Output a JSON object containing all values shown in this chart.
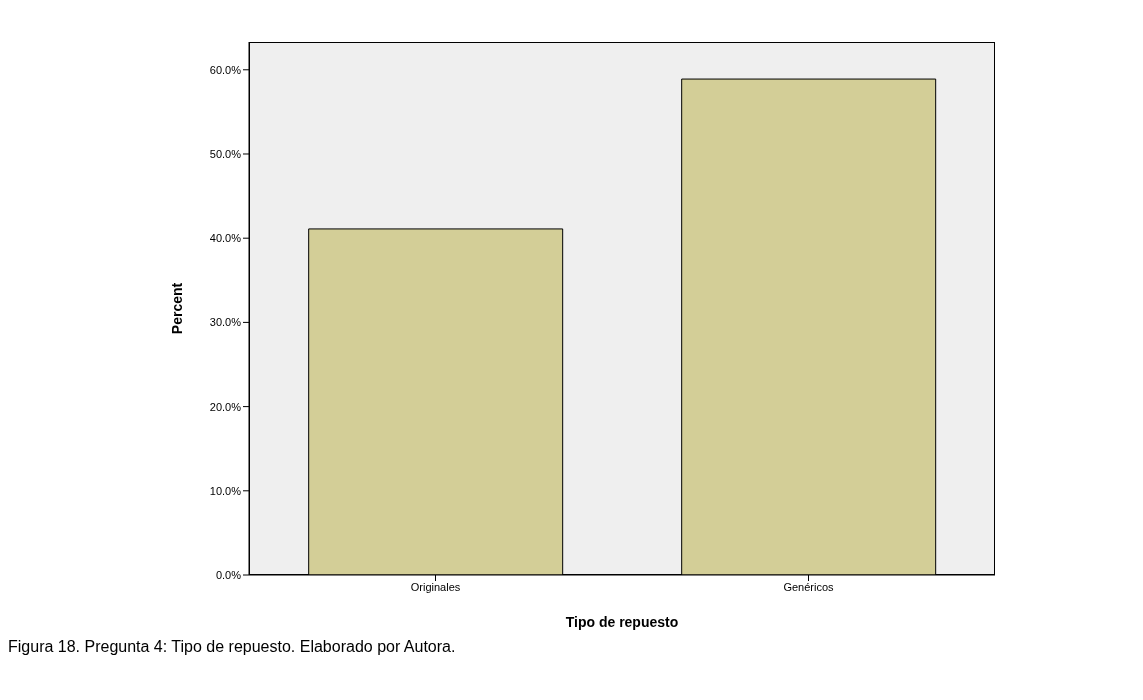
{
  "chart_data": {
    "type": "bar",
    "xlabel": "Tipo de repuesto",
    "ylabel": "Percent",
    "categories": [
      "Originales",
      "Genéricos"
    ],
    "values": [
      41.1,
      58.9
    ],
    "color": "#d3ce97",
    "ylim": [
      0,
      63.3
    ],
    "yticks": [
      {
        "value": 0,
        "label": "0.0%"
      },
      {
        "value": 10,
        "label": "10.0%"
      },
      {
        "value": 20,
        "label": "20.0%"
      },
      {
        "value": 30,
        "label": "30.0%"
      },
      {
        "value": 40,
        "label": "40.0%"
      },
      {
        "value": 50,
        "label": "50.0%"
      },
      {
        "value": 60,
        "label": "60.0%"
      }
    ],
    "annotations": [
      "Figura 18. Pregunta 4: Tipo de repuesto. Elaborado por Autora."
    ]
  }
}
